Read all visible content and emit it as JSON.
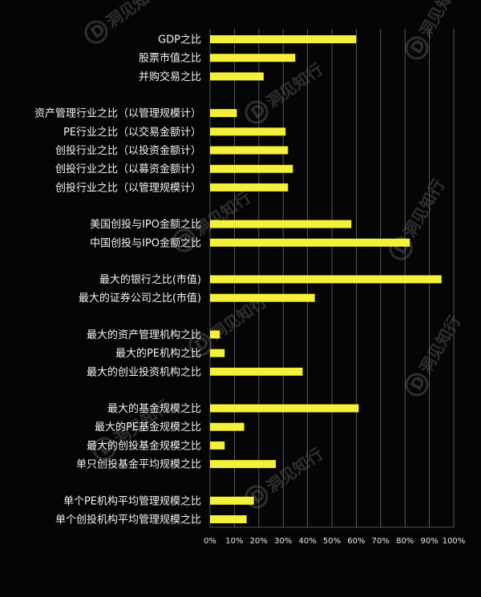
{
  "chart_data": {
    "type": "bar",
    "orientation": "horizontal",
    "bar_color": "#f5f03a",
    "background": "#050505",
    "xlim": [
      0,
      100
    ],
    "xticks": [
      0,
      10,
      20,
      30,
      40,
      50,
      60,
      70,
      80,
      90,
      100
    ],
    "xtick_labels": [
      "0%",
      "10%",
      "20%",
      "30%",
      "40%",
      "50%",
      "60%",
      "70%",
      "80%",
      "90%",
      "100%"
    ],
    "grid": "vertical",
    "groups": [
      {
        "items": [
          {
            "label": "GDP之比",
            "value": 60
          },
          {
            "label": "股票市值之比",
            "value": 35
          },
          {
            "label": "并购交易之比",
            "value": 22
          }
        ]
      },
      {
        "items": [
          {
            "label": "资产管理行业之比（以管理规模计）",
            "value": 11
          },
          {
            "label": "PE行业之比（以交易金额计）",
            "value": 31
          },
          {
            "label": "创投行业之比（以投资金额计）",
            "value": 32
          },
          {
            "label": "创投行业之比（以募资金额计）",
            "value": 34
          },
          {
            "label": "创投行业之比（以管理规模计）",
            "value": 32
          }
        ]
      },
      {
        "items": [
          {
            "label": "美国创投与IPO金额之比",
            "value": 58
          },
          {
            "label": "中国创投与IPO金额之比",
            "value": 82
          }
        ]
      },
      {
        "items": [
          {
            "label": "最大的银行之比(市值)",
            "value": 95
          },
          {
            "label": "最大的证券公司之比(市值)",
            "value": 43
          }
        ]
      },
      {
        "items": [
          {
            "label": "最大的资产管理机构之比",
            "value": 4
          },
          {
            "label": "最大的PE机构之比",
            "value": 6
          },
          {
            "label": "最大的创业投资机构之比",
            "value": 38
          }
        ]
      },
      {
        "items": [
          {
            "label": "最大的基金规模之比",
            "value": 61
          },
          {
            "label": "最大的PE基金规模之比",
            "value": 14
          },
          {
            "label": "最大的创投基金规模之比",
            "value": 6
          },
          {
            "label": "单只创投基金平均规模之比",
            "value": 27
          }
        ]
      },
      {
        "items": [
          {
            "label": "单个PE机构平均管理规模之比",
            "value": 18
          },
          {
            "label": "单个创投机构平均管理规模之比",
            "value": 15
          }
        ]
      }
    ]
  },
  "watermark": {
    "text": "洞见知行",
    "icon_letter": "D"
  }
}
